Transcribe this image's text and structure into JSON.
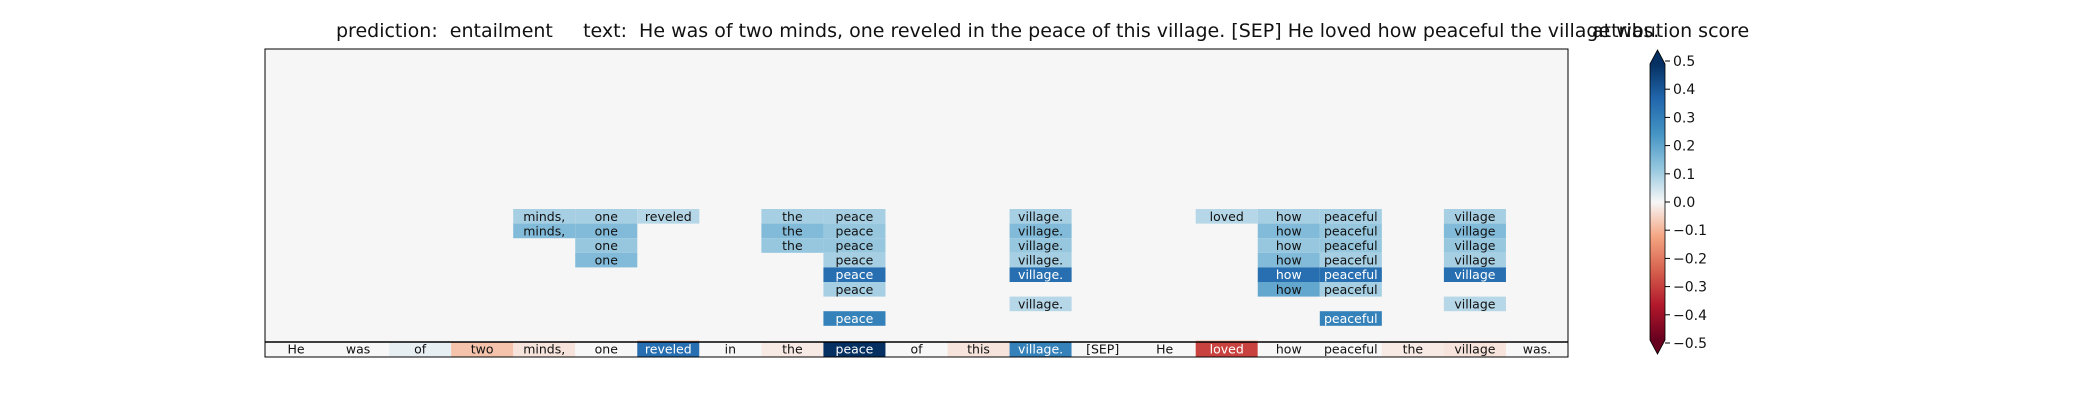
{
  "header": {
    "title": "prediction:  entailment     text:  He was of two minds, one reveled in the peace of this village. [SEP] He loved how peaceful the village was.",
    "colorbar_title": "attribution score"
  },
  "chart_data": {
    "type": "heatmap",
    "tokens": [
      "He",
      "was",
      "of",
      "two",
      "minds,",
      "one",
      "reveled",
      "in",
      "the",
      "peace",
      "of",
      "this",
      "village.",
      "[SEP]",
      "He",
      "loved",
      "how",
      "peaceful",
      "the",
      "village",
      "was."
    ],
    "base_row": [
      0.0,
      0.0,
      0.02,
      -0.08,
      -0.03,
      0.0,
      0.35,
      0.0,
      -0.02,
      0.5,
      0.0,
      -0.03,
      0.3,
      0.0,
      0.0,
      -0.3,
      0.0,
      0.0,
      -0.02,
      -0.03,
      0.0
    ],
    "stack_rows": [
      {
        "labels": [
          "",
          "",
          "",
          "",
          "minds,",
          "one",
          "reveled",
          "",
          "the",
          "peace",
          "",
          "",
          "village.",
          "",
          "",
          "loved",
          "how",
          "peaceful",
          "",
          "village",
          ""
        ],
        "values": [
          null,
          null,
          null,
          null,
          0.1,
          0.1,
          0.08,
          null,
          0.1,
          0.1,
          null,
          null,
          0.1,
          null,
          null,
          0.08,
          0.1,
          0.1,
          null,
          0.1,
          null
        ]
      },
      {
        "labels": [
          "",
          "",
          "",
          "",
          "minds,",
          "one",
          "",
          "",
          "the",
          "peace",
          "",
          "",
          "village.",
          "",
          "",
          "",
          "how",
          "peaceful",
          "",
          "village",
          ""
        ],
        "values": [
          null,
          null,
          null,
          null,
          0.15,
          0.15,
          null,
          null,
          0.15,
          0.12,
          null,
          null,
          0.15,
          null,
          null,
          null,
          0.15,
          0.12,
          null,
          0.15,
          null
        ]
      },
      {
        "labels": [
          "",
          "",
          "",
          "",
          "",
          "one",
          "",
          "",
          "the",
          "peace",
          "",
          "",
          "village.",
          "",
          "",
          "",
          "how",
          "peaceful",
          "",
          "village",
          ""
        ],
        "values": [
          null,
          null,
          null,
          null,
          null,
          0.12,
          null,
          null,
          0.12,
          0.12,
          null,
          null,
          0.12,
          null,
          null,
          null,
          0.12,
          0.12,
          null,
          0.12,
          null
        ]
      },
      {
        "labels": [
          "",
          "",
          "",
          "",
          "",
          "one",
          "",
          "",
          "",
          "peace",
          "",
          "",
          "village.",
          "",
          "",
          "",
          "how",
          "peaceful",
          "",
          "village",
          ""
        ],
        "values": [
          null,
          null,
          null,
          null,
          null,
          0.15,
          null,
          null,
          null,
          0.1,
          null,
          null,
          0.1,
          null,
          null,
          null,
          0.15,
          0.1,
          null,
          0.1,
          null
        ]
      },
      {
        "labels": [
          "",
          "",
          "",
          "",
          "",
          "",
          "",
          "",
          "",
          "peace",
          "",
          "",
          "village.",
          "",
          "",
          "",
          "how",
          "peaceful",
          "",
          "village",
          ""
        ],
        "values": [
          null,
          null,
          null,
          null,
          null,
          null,
          null,
          null,
          null,
          0.35,
          null,
          null,
          0.35,
          null,
          null,
          null,
          0.35,
          0.35,
          null,
          0.35,
          null
        ]
      },
      {
        "labels": [
          "",
          "",
          "",
          "",
          "",
          "",
          "",
          "",
          "",
          "peace",
          "",
          "",
          "",
          "",
          "",
          "",
          "how",
          "peaceful",
          "",
          "",
          ""
        ],
        "values": [
          null,
          null,
          null,
          null,
          null,
          null,
          null,
          null,
          null,
          0.1,
          null,
          null,
          null,
          null,
          null,
          null,
          0.2,
          0.1,
          null,
          null,
          null
        ]
      },
      {
        "labels": [
          "",
          "",
          "",
          "",
          "",
          "",
          "",
          "",
          "",
          "",
          "",
          "",
          "village.",
          "",
          "",
          "",
          "",
          "",
          "",
          "village",
          ""
        ],
        "values": [
          null,
          null,
          null,
          null,
          null,
          null,
          null,
          null,
          null,
          null,
          null,
          null,
          0.08,
          null,
          null,
          null,
          null,
          null,
          null,
          0.08,
          null
        ]
      },
      {
        "labels": [
          "",
          "",
          "",
          "",
          "",
          "",
          "",
          "",
          "",
          "peace",
          "",
          "",
          "",
          "",
          "",
          "",
          "",
          "peaceful",
          "",
          "",
          ""
        ],
        "values": [
          null,
          null,
          null,
          null,
          null,
          null,
          null,
          null,
          null,
          0.3,
          null,
          null,
          null,
          null,
          null,
          null,
          null,
          0.3,
          null,
          null,
          null
        ]
      },
      {
        "labels": [
          "",
          "",
          "",
          "",
          "",
          "",
          "",
          "",
          "",
          "",
          "",
          "",
          "",
          "",
          "",
          "",
          "",
          "",
          "",
          "",
          ""
        ],
        "values": [
          null,
          null,
          null,
          null,
          null,
          null,
          null,
          null,
          null,
          null,
          null,
          null,
          null,
          null,
          null,
          null,
          null,
          null,
          null,
          null,
          null
        ]
      },
      {
        "labels": [
          "",
          "",
          "",
          "",
          "",
          "",
          "reveled",
          "",
          "",
          "",
          "",
          "",
          "",
          "",
          "",
          "loved",
          "",
          "",
          "",
          "",
          ""
        ],
        "values": [
          null,
          null,
          null,
          null,
          null,
          null,
          -0.08,
          null,
          null,
          null,
          null,
          null,
          null,
          null,
          null,
          -0.08,
          null,
          null,
          null,
          null,
          null
        ]
      }
    ],
    "colorbar": {
      "range": [
        -0.5,
        0.5
      ],
      "ticks": [
        0.5,
        0.4,
        0.3,
        0.2,
        0.1,
        0.0,
        -0.1,
        -0.2,
        -0.3,
        -0.4,
        -0.5
      ],
      "tick_labels": [
        "0.5",
        "0.4",
        "0.3",
        "0.2",
        "0.1",
        "0.0",
        "−0.1",
        "−0.2",
        "−0.3",
        "−0.4",
        "−0.5"
      ],
      "colormap": "RdBu"
    },
    "background_color": "#f5f6f5"
  }
}
